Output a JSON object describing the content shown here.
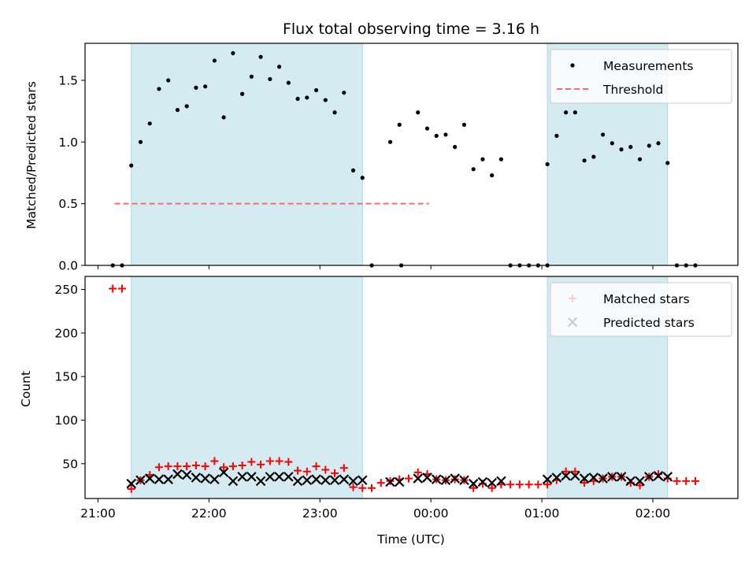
{
  "title": "Flux total observing time = 3.16 h",
  "xlabel": "Time (UTC)",
  "colors": {
    "shade": "#add8e6",
    "measure": "#000000",
    "threshold": "#ff6b6b",
    "matched": "#ff0000",
    "predicted": "#000000"
  },
  "chart_data": [
    {
      "type": "scatter",
      "ylabel": "Matched/Predicted stars",
      "xlim": [
        "20:53",
        "02:46"
      ],
      "ylim": [
        0,
        1.8
      ],
      "yticks": [
        "0.0",
        "0.5",
        "1.0",
        "1.5"
      ],
      "legend": {
        "placement": "top-right",
        "entries": [
          "Measurements",
          "Threshold"
        ]
      },
      "shaded_intervals": [
        [
          "21:18",
          "23:23"
        ],
        [
          "01:03",
          "02:08"
        ]
      ],
      "threshold": {
        "name": "Threshold",
        "y": 0.5,
        "x_range": [
          "21:09",
          "23:59"
        ]
      },
      "series": [
        {
          "name": "Measurements",
          "points": [
            [
              "21:08",
              0
            ],
            [
              "21:13",
              0
            ],
            [
              "21:18",
              0.81
            ],
            [
              "21:23",
              1.0
            ],
            [
              "21:28",
              1.15
            ],
            [
              "21:33",
              1.43
            ],
            [
              "21:38",
              1.5
            ],
            [
              "21:43",
              1.26
            ],
            [
              "21:48",
              1.29
            ],
            [
              "21:53",
              1.44
            ],
            [
              "21:58",
              1.45
            ],
            [
              "22:03",
              1.66
            ],
            [
              "22:08",
              1.2
            ],
            [
              "22:13",
              1.72
            ],
            [
              "22:18",
              1.39
            ],
            [
              "22:23",
              1.53
            ],
            [
              "22:28",
              1.69
            ],
            [
              "22:33",
              1.51
            ],
            [
              "22:38",
              1.61
            ],
            [
              "22:43",
              1.48
            ],
            [
              "22:48",
              1.35
            ],
            [
              "22:53",
              1.36
            ],
            [
              "22:58",
              1.42
            ],
            [
              "23:03",
              1.34
            ],
            [
              "23:08",
              1.24
            ],
            [
              "23:13",
              1.4
            ],
            [
              "23:18",
              0.77
            ],
            [
              "23:23",
              0.71
            ],
            [
              "23:28",
              0
            ],
            [
              "23:38",
              1.0
            ],
            [
              "23:43",
              1.14
            ],
            [
              "23:44",
              0
            ],
            [
              "23:53",
              1.24
            ],
            [
              "23:58",
              1.11
            ],
            [
              "00:03",
              1.05
            ],
            [
              "00:08",
              1.06
            ],
            [
              "00:13",
              0.96
            ],
            [
              "00:18",
              1.14
            ],
            [
              "00:23",
              0.78
            ],
            [
              "00:28",
              0.86
            ],
            [
              "00:33",
              0.73
            ],
            [
              "00:38",
              0.86
            ],
            [
              "00:43",
              0
            ],
            [
              "00:48",
              0
            ],
            [
              "00:53",
              0
            ],
            [
              "00:58",
              0
            ],
            [
              "01:03",
              0
            ],
            [
              "01:03",
              0.82
            ],
            [
              "01:08",
              1.05
            ],
            [
              "01:13",
              1.24
            ],
            [
              "01:18",
              1.24
            ],
            [
              "01:23",
              0.85
            ],
            [
              "01:28",
              0.88
            ],
            [
              "01:33",
              1.06
            ],
            [
              "01:38",
              0.99
            ],
            [
              "01:43",
              0.94
            ],
            [
              "01:48",
              0.96
            ],
            [
              "01:53",
              0.86
            ],
            [
              "01:58",
              0.97
            ],
            [
              "02:03",
              0.99
            ],
            [
              "02:08",
              0.83
            ],
            [
              "02:13",
              0
            ],
            [
              "02:18",
              0
            ],
            [
              "02:23",
              0
            ]
          ]
        }
      ]
    },
    {
      "type": "scatter",
      "ylabel": "Count",
      "xlim": [
        "20:53",
        "02:46"
      ],
      "ylim": [
        10,
        265
      ],
      "yticks": [
        "50",
        "100",
        "150",
        "200",
        "250"
      ],
      "xticks": [
        "21:00",
        "22:00",
        "23:00",
        "00:00",
        "01:00",
        "02:00"
      ],
      "legend": {
        "placement": "top-right",
        "entries": [
          "Matched stars",
          "Predicted stars"
        ]
      },
      "shaded_intervals": [
        [
          "21:18",
          "23:23"
        ],
        [
          "01:03",
          "02:08"
        ]
      ],
      "series": [
        {
          "name": "Matched stars",
          "points": [
            [
              "21:08",
              251
            ],
            [
              "21:13",
              251
            ],
            [
              "21:18",
              21
            ],
            [
              "21:23",
              31
            ],
            [
              "21:28",
              37
            ],
            [
              "21:33",
              46
            ],
            [
              "21:38",
              47
            ],
            [
              "21:43",
              47
            ],
            [
              "21:48",
              47
            ],
            [
              "21:53",
              48
            ],
            [
              "21:58",
              47
            ],
            [
              "22:03",
              53
            ],
            [
              "22:08",
              46
            ],
            [
              "22:13",
              47
            ],
            [
              "22:18",
              48
            ],
            [
              "22:23",
              52
            ],
            [
              "22:28",
              49
            ],
            [
              "22:33",
              53
            ],
            [
              "22:38",
              53
            ],
            [
              "22:43",
              52
            ],
            [
              "22:48",
              42
            ],
            [
              "22:53",
              41
            ],
            [
              "22:58",
              47
            ],
            [
              "23:03",
              43
            ],
            [
              "23:08",
              39
            ],
            [
              "23:13",
              45
            ],
            [
              "23:18",
              23
            ],
            [
              "23:23",
              22
            ],
            [
              "23:28",
              22
            ],
            [
              "23:33",
              28
            ],
            [
              "23:38",
              30
            ],
            [
              "23:43",
              32
            ],
            [
              "23:48",
              33
            ],
            [
              "23:53",
              40
            ],
            [
              "23:58",
              38
            ],
            [
              "00:03",
              32
            ],
            [
              "00:08",
              31
            ],
            [
              "00:13",
              32
            ],
            [
              "00:18",
              31
            ],
            [
              "00:23",
              22
            ],
            [
              "00:28",
              27
            ],
            [
              "00:33",
              22
            ],
            [
              "00:38",
              26
            ],
            [
              "00:43",
              26
            ],
            [
              "00:48",
              26
            ],
            [
              "00:53",
              26
            ],
            [
              "00:58",
              26
            ],
            [
              "01:03",
              26
            ],
            [
              "01:08",
              31
            ],
            [
              "01:13",
              41
            ],
            [
              "01:18",
              41
            ],
            [
              "01:23",
              28
            ],
            [
              "01:28",
              30
            ],
            [
              "01:33",
              33
            ],
            [
              "01:38",
              35
            ],
            [
              "01:43",
              35
            ],
            [
              "01:48",
              28
            ],
            [
              "01:53",
              25
            ],
            [
              "01:58",
              35
            ],
            [
              "02:03",
              38
            ],
            [
              "02:08",
              33
            ],
            [
              "02:13",
              30
            ],
            [
              "02:18",
              30
            ],
            [
              "02:23",
              30
            ]
          ]
        },
        {
          "name": "Predicted stars",
          "points": [
            [
              "21:18",
              27
            ],
            [
              "21:23",
              31
            ],
            [
              "21:28",
              33
            ],
            [
              "21:33",
              32
            ],
            [
              "21:38",
              32
            ],
            [
              "21:43",
              38
            ],
            [
              "21:48",
              37
            ],
            [
              "21:53",
              34
            ],
            [
              "21:58",
              33
            ],
            [
              "22:03",
              32
            ],
            [
              "22:08",
              40
            ],
            [
              "22:13",
              30
            ],
            [
              "22:18",
              35
            ],
            [
              "22:23",
              35
            ],
            [
              "22:28",
              30
            ],
            [
              "22:33",
              35
            ],
            [
              "22:38",
              35
            ],
            [
              "22:43",
              35
            ],
            [
              "22:48",
              30
            ],
            [
              "22:53",
              31
            ],
            [
              "22:58",
              32
            ],
            [
              "23:03",
              31
            ],
            [
              "23:08",
              31
            ],
            [
              "23:13",
              32
            ],
            [
              "23:18",
              30
            ],
            [
              "23:23",
              31
            ],
            [
              "23:38",
              29
            ],
            [
              "23:43",
              29
            ],
            [
              "23:53",
              33
            ],
            [
              "23:58",
              34
            ],
            [
              "00:03",
              32
            ],
            [
              "00:08",
              31
            ],
            [
              "00:13",
              33
            ],
            [
              "00:18",
              31
            ],
            [
              "00:23",
              27
            ],
            [
              "00:28",
              29
            ],
            [
              "00:33",
              28
            ],
            [
              "00:38",
              30
            ],
            [
              "01:03",
              32
            ],
            [
              "01:08",
              34
            ],
            [
              "01:13",
              36
            ],
            [
              "01:18",
              36
            ],
            [
              "01:23",
              33
            ],
            [
              "01:28",
              34
            ],
            [
              "01:33",
              33
            ],
            [
              "01:38",
              35
            ],
            [
              "01:43",
              35
            ],
            [
              "01:48",
              30
            ],
            [
              "01:53",
              30
            ],
            [
              "01:58",
              35
            ],
            [
              "02:03",
              36
            ],
            [
              "02:08",
              35
            ]
          ]
        }
      ]
    }
  ]
}
